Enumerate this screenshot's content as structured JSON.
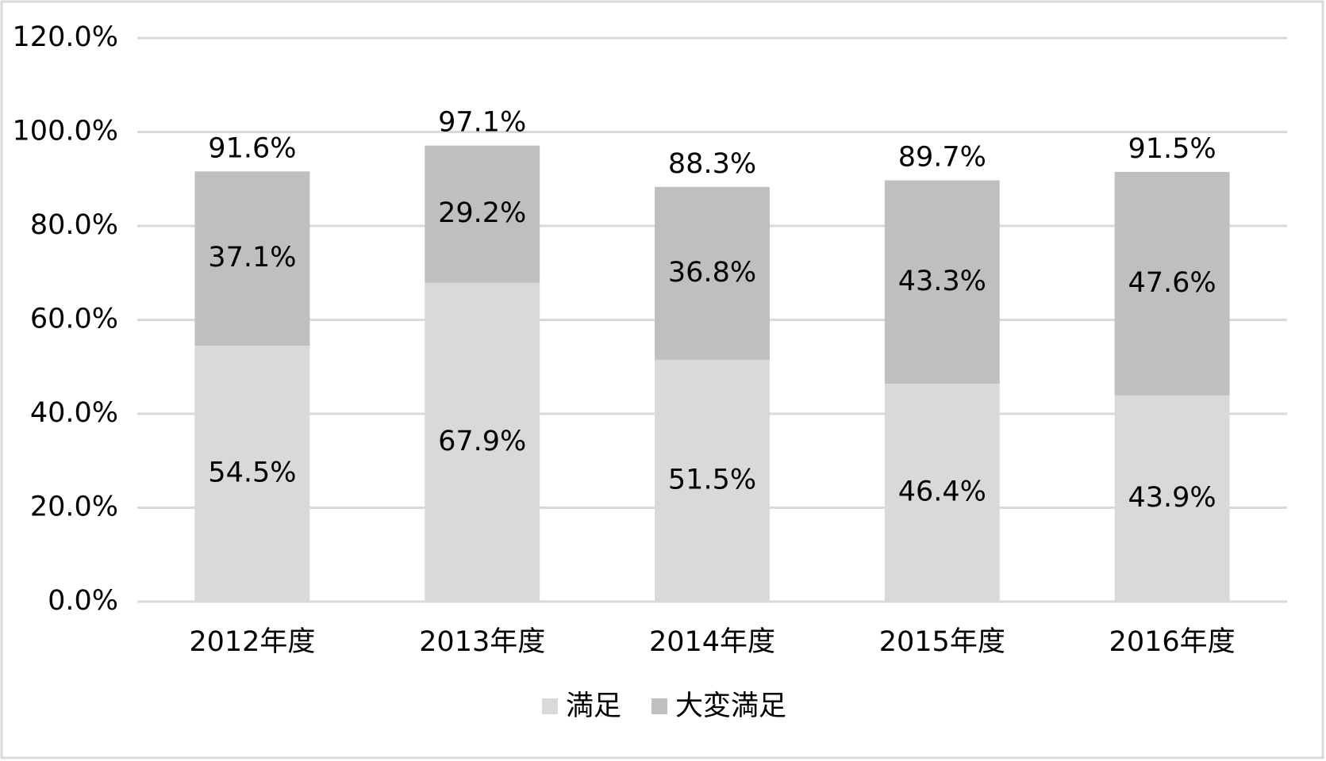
{
  "chart_data": {
    "type": "stacked-bar",
    "categories": [
      "2012年度",
      "2013年度",
      "2014年度",
      "2015年度",
      "2016年度"
    ],
    "series": [
      {
        "name": "満足",
        "color": "#d9d9d9",
        "values": [
          54.5,
          67.9,
          51.5,
          46.4,
          43.9
        ],
        "value_labels": [
          "54.5%",
          "67.9%",
          "51.5%",
          "46.4%",
          "43.9%"
        ]
      },
      {
        "name": "大変満足",
        "color": "#bfbfbf",
        "values": [
          37.1,
          29.2,
          36.8,
          43.3,
          47.6
        ],
        "value_labels": [
          "37.1%",
          "29.2%",
          "36.8%",
          "43.3%",
          "47.6%"
        ]
      }
    ],
    "totals": [
      91.6,
      97.1,
      88.3,
      89.7,
      91.5
    ],
    "total_labels": [
      "91.6%",
      "97.1%",
      "88.3%",
      "89.7%",
      "91.5%"
    ],
    "ylim": [
      0,
      120
    ],
    "yticks": [
      {
        "value": 0,
        "label": "0.0%"
      },
      {
        "value": 20,
        "label": "20.0%"
      },
      {
        "value": 40,
        "label": "40.0%"
      },
      {
        "value": 60,
        "label": "60.0%"
      },
      {
        "value": 80,
        "label": "80.0%"
      },
      {
        "value": 100,
        "label": "100.0%"
      },
      {
        "value": 120,
        "label": "120.0%"
      }
    ],
    "grid": true
  }
}
